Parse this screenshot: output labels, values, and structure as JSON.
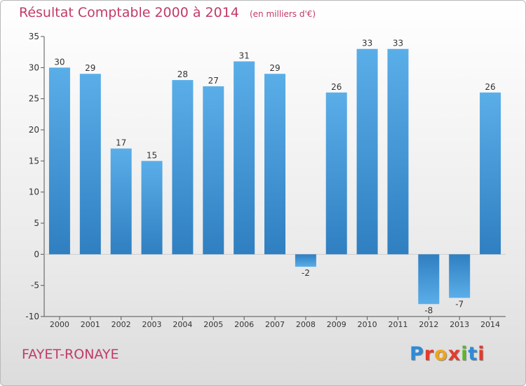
{
  "header": {
    "title": "Résultat Comptable 2000 à 2014",
    "unit": "(en milliers d'€)"
  },
  "footer": {
    "commune": "FAYET-RONAYE",
    "logo_text": "Proxiti",
    "logo_colors": [
      "#2e8bd6",
      "#e53b2c",
      "#f2a51a",
      "#e53b2c",
      "#5fb530",
      "#2e8bd6",
      "#e53b2c"
    ]
  },
  "colors": {
    "title": "#c23a6a",
    "bar_light": "#5aaee8",
    "bar_dark": "#2f7fc1",
    "axis": "#555555",
    "grid": "#d6d6d6"
  },
  "chart_data": {
    "type": "bar",
    "categories": [
      "2000",
      "2001",
      "2002",
      "2003",
      "2004",
      "2005",
      "2006",
      "2007",
      "2008",
      "2009",
      "2010",
      "2011",
      "2012",
      "2013",
      "2014"
    ],
    "values": [
      30,
      29,
      17,
      15,
      28,
      27,
      31,
      29,
      -2,
      26,
      33,
      33,
      -8,
      -7,
      26
    ],
    "ylim": [
      -10,
      35
    ],
    "yticks": [
      -10,
      -5,
      0,
      5,
      10,
      15,
      20,
      25,
      30,
      35
    ],
    "grid": false,
    "legend": "none"
  }
}
